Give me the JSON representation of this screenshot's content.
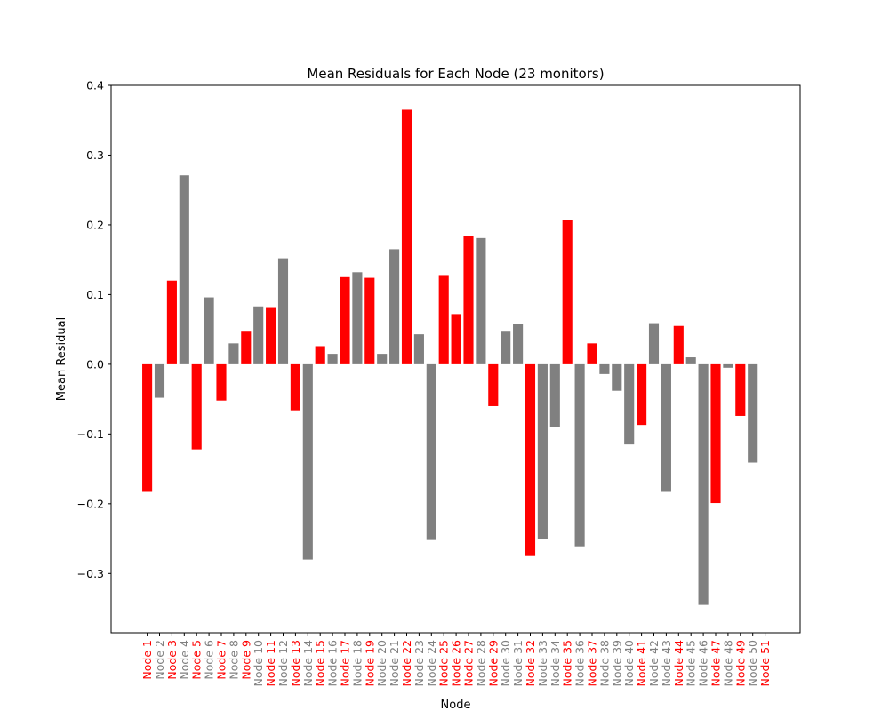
{
  "chart_data": {
    "type": "bar",
    "title": "Mean Residuals for Each Node (23 monitors)",
    "xlabel": "Node",
    "ylabel": "Mean Residual",
    "ylim": [
      -0.385,
      0.4
    ],
    "yticks": [
      -0.3,
      -0.2,
      -0.1,
      0.0,
      0.1,
      0.2,
      0.3,
      0.4
    ],
    "ytick_labels": [
      "−0.3",
      "−0.2",
      "−0.1",
      "0.0",
      "0.1",
      "0.2",
      "0.3",
      "0.4"
    ],
    "grid": false,
    "colors": {
      "monitor": "#ff0000",
      "other": "#808080"
    },
    "categories": [
      "Node 1",
      "Node 2",
      "Node 3",
      "Node 4",
      "Node 5",
      "Node 6",
      "Node 7",
      "Node 8",
      "Node 9",
      "Node 10",
      "Node 11",
      "Node 12",
      "Node 13",
      "Node 14",
      "Node 15",
      "Node 16",
      "Node 17",
      "Node 18",
      "Node 19",
      "Node 20",
      "Node 21",
      "Node 22",
      "Node 23",
      "Node 24",
      "Node 25",
      "Node 26",
      "Node 27",
      "Node 28",
      "Node 29",
      "Node 30",
      "Node 31",
      "Node 32",
      "Node 33",
      "Node 34",
      "Node 35",
      "Node 36",
      "Node 37",
      "Node 38",
      "Node 39",
      "Node 40",
      "Node 41",
      "Node 42",
      "Node 43",
      "Node 44",
      "Node 45",
      "Node 46",
      "Node 47",
      "Node 48",
      "Node 49",
      "Node 50",
      "Node 51"
    ],
    "values": [
      -0.183,
      -0.048,
      0.12,
      0.271,
      -0.122,
      0.096,
      -0.052,
      0.03,
      0.048,
      0.083,
      0.082,
      0.152,
      -0.066,
      -0.28,
      0.026,
      0.015,
      0.125,
      0.132,
      0.124,
      0.015,
      0.165,
      0.365,
      0.043,
      -0.252,
      0.128,
      0.072,
      0.184,
      0.181,
      -0.06,
      0.048,
      0.058,
      -0.275,
      -0.25,
      -0.09,
      0.207,
      -0.261,
      0.03,
      -0.014,
      -0.038,
      -0.115,
      -0.087,
      0.059,
      -0.183,
      0.055,
      0.01,
      -0.345,
      -0.199,
      -0.005,
      -0.074,
      -0.141,
      0.0
    ],
    "monitor": [
      true,
      false,
      true,
      false,
      true,
      false,
      true,
      false,
      true,
      false,
      true,
      false,
      true,
      false,
      true,
      false,
      true,
      false,
      true,
      false,
      false,
      true,
      false,
      false,
      true,
      true,
      true,
      false,
      true,
      false,
      false,
      true,
      false,
      false,
      true,
      false,
      true,
      false,
      false,
      false,
      true,
      false,
      false,
      true,
      false,
      false,
      true,
      false,
      true,
      false,
      true
    ]
  }
}
